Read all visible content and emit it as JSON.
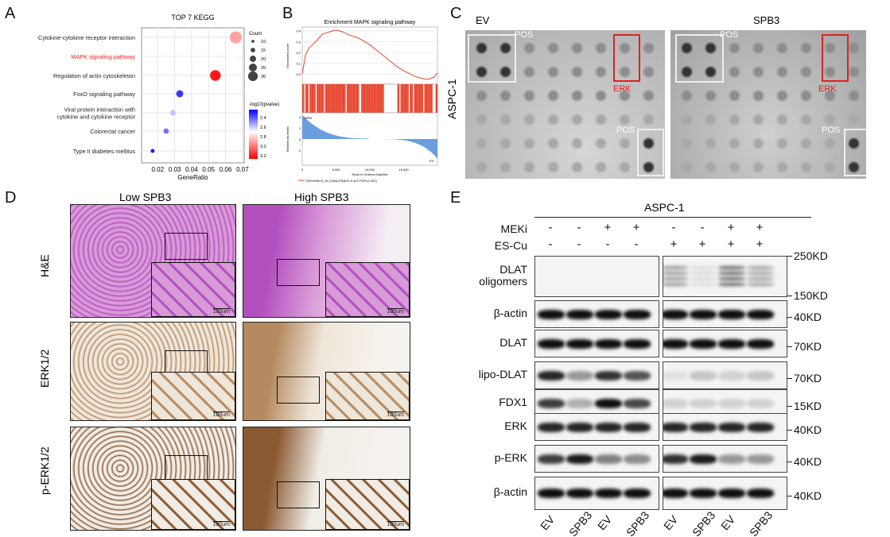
{
  "panels": {
    "a": "A",
    "b": "B",
    "c": "C",
    "d": "D",
    "e": "E"
  },
  "panel_a": {
    "chart_data": {
      "type": "scatter",
      "title": "TOP 7 KEGG",
      "xlabel": "GeneRatio",
      "xlim": [
        0.0105,
        0.071
      ],
      "xticks": [
        "0.02",
        "0.03",
        "0.04",
        "0.05",
        "0.06",
        "0.07"
      ],
      "categories": [
        "Cytokine-cytokine receptor interaction",
        "MAPK signaling pathway",
        "Regulation of actin cytoskeleton",
        "FoxO signaling pathway",
        "Viral protein interaction with cytokine and cytokine receptor",
        "Colorectal cancer",
        "Type II diabetes mellitus"
      ],
      "highlight_category": "MAPK signaling pathway",
      "highlight_color": "#e8262b",
      "x": [
        0.066,
        0.064,
        0.054,
        0.033,
        0.029,
        0.025,
        0.017
      ],
      "count": [
        28,
        27,
        25,
        17,
        14,
        13,
        10
      ],
      "neglog10p": [
        2.9,
        2.7,
        3.2,
        2.35,
        2.6,
        2.45,
        2.3
      ],
      "size_legend": {
        "title": "Count",
        "values": [
          "10",
          "15",
          "20",
          "25",
          "30"
        ]
      },
      "color_legend": {
        "title": "-log10(pvalue)",
        "ticks": [
          "2.4",
          "2.6",
          "2.8",
          "3.0",
          "3.2"
        ],
        "range": [
          2.25,
          3.25
        ],
        "low_color": "#0000ff",
        "mid_color": "#ffffff",
        "high_color": "#ff0000"
      },
      "grid": true
    }
  },
  "panel_b": {
    "chart_data": {
      "type": "line",
      "title": "Enrichment MAPK signaling pathway",
      "ylabel_top": "Enrichment score",
      "ylabel_bottom": "Ranked list metric",
      "xlabel": "Rank in Ordered DataSet",
      "xticks": [
        "0",
        "5,000",
        "10,000",
        "15,000"
      ],
      "yticks_top": [
        "0.4",
        "0.3",
        "0.2",
        "0.1",
        "0.0"
      ],
      "yticks_bottom": [
        "4",
        "2",
        "0",
        "-2"
      ],
      "corner_top": "SPB3",
      "corner_bottom": "EV",
      "legend": "PATHWAYS_IN_CANCER(ES=0.407,FDR=0.292)",
      "line_color": "#e8452f",
      "metric_color": "#6b9ede",
      "x": [
        0,
        500,
        1000,
        1500,
        2000,
        3000,
        4000,
        5000,
        6000,
        7000,
        8000,
        9000,
        10000,
        11000,
        12000,
        13000,
        14000,
        15000,
        16000,
        17000,
        18500,
        19500,
        20000
      ],
      "es": [
        0.0,
        0.18,
        0.24,
        0.27,
        0.3,
        0.37,
        0.39,
        0.405,
        0.39,
        0.36,
        0.34,
        0.31,
        0.27,
        0.22,
        0.17,
        0.12,
        0.07,
        0.03,
        0.0,
        -0.03,
        -0.05,
        -0.03,
        0.01
      ]
    }
  },
  "panel_c": {
    "ev_title": "EV",
    "spb3_title": "SPB3",
    "row_label": "ASPC-1",
    "pos": "POS",
    "erk": "ERK",
    "erk_color": "#e02020"
  },
  "panel_d": {
    "col_low": "Low SPB3",
    "col_high": "High SPB3",
    "rows": [
      "H&E",
      "ERK1/2",
      "p-ERK1/2"
    ],
    "scale": "100um"
  },
  "panel_e": {
    "cell_line": "ASPC-1",
    "treatments": [
      {
        "label": "MEKi",
        "signs": [
          "-",
          "-",
          "+",
          "+",
          "-",
          "-",
          "+",
          "+"
        ]
      },
      {
        "label": "ES-Cu",
        "signs": [
          "-",
          "-",
          "-",
          "-",
          "+",
          "+",
          "+",
          "+"
        ]
      }
    ],
    "rows": [
      {
        "label": "DLAT oligomers",
        "kd": [
          "250KD",
          "150KD"
        ],
        "intensity": [
          0,
          0,
          0,
          0,
          0.55,
          0.15,
          0.85,
          0.5
        ]
      },
      {
        "label": "β-actin",
        "kd": [
          "40KD"
        ],
        "intensity": [
          1,
          1,
          1,
          1,
          1,
          1,
          1,
          1
        ]
      },
      {
        "label": "DLAT",
        "kd": [
          "70KD"
        ],
        "intensity": [
          1,
          1,
          1,
          1,
          1,
          1,
          1,
          1
        ]
      },
      {
        "label": "lipo-DLAT",
        "kd": [
          "70KD"
        ],
        "intensity": [
          0.9,
          0.4,
          0.85,
          0.7,
          0.08,
          0.2,
          0.15,
          0.2
        ]
      },
      {
        "label": "FDX1",
        "kd": [
          "15KD"
        ],
        "intensity": [
          0.8,
          0.3,
          1,
          0.75,
          0.15,
          0.15,
          0.15,
          0.15
        ]
      },
      {
        "label": "ERK",
        "kd": [
          "40KD"
        ],
        "intensity": [
          0.9,
          0.9,
          0.9,
          0.9,
          0.9,
          0.9,
          0.9,
          0.9
        ]
      },
      {
        "label": "p-ERK",
        "kd": [
          "40KD"
        ],
        "intensity": [
          0.8,
          0.95,
          0.5,
          0.45,
          0.85,
          0.95,
          0.4,
          0.4
        ]
      },
      {
        "label": "β-actin",
        "kd": [
          "40KD"
        ],
        "intensity": [
          1,
          1,
          1,
          1,
          1,
          1,
          1,
          1
        ]
      }
    ],
    "lanes": [
      "EV",
      "SPB3",
      "EV",
      "SPB3",
      "EV",
      "SPB3",
      "EV",
      "SPB3"
    ]
  }
}
